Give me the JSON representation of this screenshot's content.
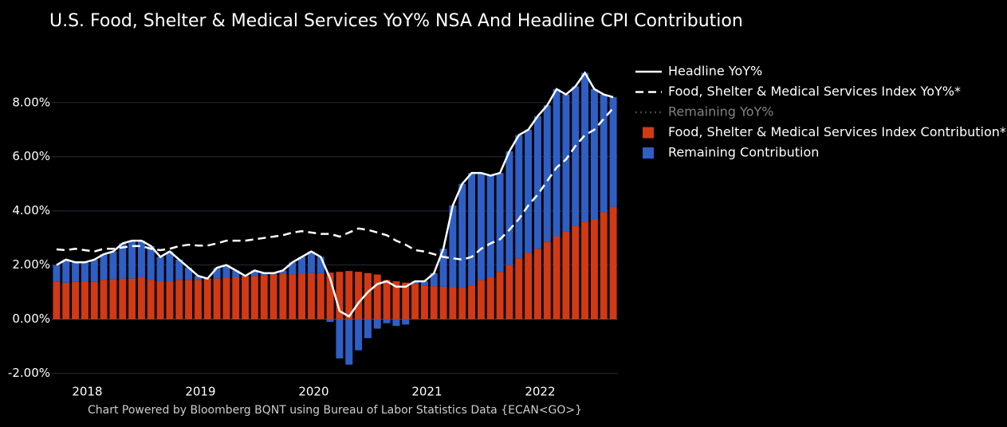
{
  "chart_data": {
    "type": "stacked_bar_line",
    "title": "U.S. Food, Shelter & Medical Services YoY% NSA And Headline CPI Contribution",
    "footnote": "Chart Powered by Bloomberg BQNT using Bureau of Labor Statistics Data   {ECAN<GO>}",
    "categories": [
      null,
      null,
      null,
      "2018",
      null,
      null,
      null,
      null,
      null,
      null,
      null,
      null,
      null,
      null,
      null,
      "2019",
      null,
      null,
      null,
      null,
      null,
      null,
      null,
      null,
      null,
      null,
      null,
      "2020",
      null,
      null,
      null,
      null,
      null,
      null,
      null,
      null,
      null,
      null,
      null,
      "2021",
      null,
      null,
      null,
      null,
      null,
      null,
      null,
      null,
      null,
      null,
      null,
      "2022",
      null,
      null,
      null,
      null,
      null,
      null,
      null,
      null
    ],
    "ylim": [
      -2.1,
      9.2
    ],
    "yticks": [
      {
        "value": -2,
        "label": "-2.00%"
      },
      {
        "value": 0,
        "label": "0.00%"
      },
      {
        "value": 2,
        "label": "2.00%"
      },
      {
        "value": 4,
        "label": "4.00%"
      },
      {
        "value": 6,
        "label": "6.00%"
      },
      {
        "value": 8,
        "label": "8.00%"
      }
    ],
    "grid": true,
    "series": [
      {
        "name": "Headline YoY%",
        "kind": "line",
        "color": "#ffffff",
        "dash": "solid",
        "values": [
          2.0,
          2.2,
          2.1,
          2.1,
          2.2,
          2.4,
          2.5,
          2.8,
          2.9,
          2.9,
          2.7,
          2.3,
          2.5,
          2.2,
          1.9,
          1.6,
          1.5,
          1.9,
          2.0,
          1.8,
          1.6,
          1.8,
          1.7,
          1.7,
          1.8,
          2.1,
          2.3,
          2.5,
          2.3,
          1.5,
          0.3,
          0.1,
          0.6,
          1.0,
          1.3,
          1.4,
          1.2,
          1.2,
          1.4,
          1.4,
          1.7,
          2.6,
          4.2,
          5.0,
          5.4,
          5.4,
          5.3,
          5.4,
          6.2,
          6.8,
          7.0,
          7.5,
          7.9,
          8.5,
          8.3,
          8.6,
          9.1,
          8.5,
          8.3,
          8.2
        ]
      },
      {
        "name": "Food, Shelter & Medical Services Index YoY%*",
        "kind": "line",
        "color": "#ffffff",
        "dash": "dashed",
        "values": [
          2.58,
          2.55,
          2.6,
          2.55,
          2.5,
          2.6,
          2.6,
          2.65,
          2.7,
          2.7,
          2.6,
          2.55,
          2.6,
          2.7,
          2.75,
          2.72,
          2.72,
          2.8,
          2.9,
          2.9,
          2.9,
          2.95,
          3.0,
          3.05,
          3.1,
          3.2,
          3.25,
          3.2,
          3.15,
          3.15,
          3.05,
          3.2,
          3.35,
          3.3,
          3.2,
          3.1,
          2.9,
          2.75,
          2.55,
          2.5,
          2.4,
          2.3,
          2.25,
          2.2,
          2.3,
          2.6,
          2.8,
          2.95,
          3.3,
          3.7,
          4.2,
          4.6,
          5.1,
          5.6,
          5.9,
          6.4,
          6.8,
          7.0,
          7.4,
          7.8
        ]
      },
      {
        "name": "Remaining YoY%",
        "kind": "line",
        "color": "#888888",
        "dash": "dotted",
        "visible": false
      },
      {
        "name": "Food, Shelter & Medical Services Index Contribution*",
        "kind": "bar",
        "color": "#d13a14",
        "values": [
          1.38,
          1.35,
          1.38,
          1.4,
          1.38,
          1.45,
          1.47,
          1.5,
          1.5,
          1.52,
          1.45,
          1.4,
          1.4,
          1.45,
          1.45,
          1.45,
          1.5,
          1.5,
          1.52,
          1.55,
          1.58,
          1.6,
          1.62,
          1.65,
          1.68,
          1.65,
          1.68,
          1.7,
          1.7,
          1.72,
          1.75,
          1.78,
          1.75,
          1.7,
          1.65,
          1.45,
          1.4,
          1.35,
          1.3,
          1.25,
          1.22,
          1.2,
          1.18,
          1.15,
          1.25,
          1.45,
          1.55,
          1.75,
          2.0,
          2.25,
          2.45,
          2.6,
          2.85,
          3.05,
          3.25,
          3.45,
          3.6,
          3.7,
          3.95,
          4.15
        ]
      },
      {
        "name": "Remaining Contribution",
        "kind": "bar",
        "color": "#2f5fc4",
        "values": [
          0.62,
          0.85,
          0.72,
          0.7,
          0.82,
          0.95,
          1.03,
          1.3,
          1.4,
          1.38,
          1.25,
          0.9,
          1.1,
          0.75,
          0.45,
          0.15,
          0.0,
          0.4,
          0.48,
          0.25,
          0.02,
          0.2,
          0.08,
          0.05,
          0.12,
          0.45,
          0.62,
          0.8,
          0.6,
          -0.1,
          -1.45,
          -1.68,
          -1.15,
          -0.7,
          -0.35,
          -0.15,
          -0.25,
          -0.2,
          0.1,
          0.15,
          0.48,
          1.4,
          3.02,
          3.85,
          4.15,
          3.95,
          3.75,
          3.65,
          4.2,
          4.55,
          4.55,
          4.9,
          5.05,
          5.45,
          5.05,
          5.15,
          5.5,
          4.8,
          4.35,
          4.05
        ]
      }
    ]
  }
}
